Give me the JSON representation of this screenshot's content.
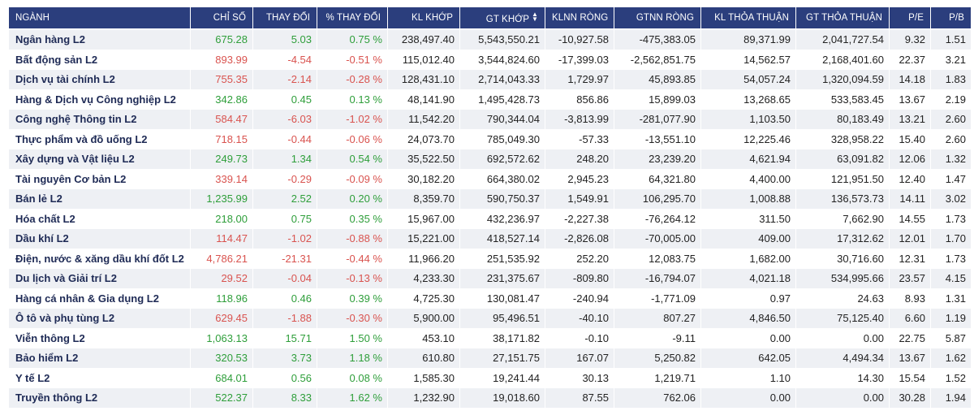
{
  "colors": {
    "header_bg": "#2b3e7d",
    "up": "#2e9e3a",
    "down": "#d9534f",
    "row_alt": "#eef0f4"
  },
  "headers": {
    "sector": "NGÀNH",
    "index": "CHỈ SỐ",
    "change": "THAY ĐỔI",
    "pct_change": "% THAY ĐỔI",
    "volume": "KL KHỚP",
    "value": "GT KHỚP",
    "sort_icon": "sort-icon",
    "foreign_net_vol": "KLNN RÒNG",
    "foreign_net_val": "GTNN RÒNG",
    "deal_vol": "KL THỎA THUẬN",
    "deal_val": "GT THỎA THUẬN",
    "pe": "P/E",
    "pb": "P/B"
  },
  "rows": [
    {
      "sector": "Ngân hàng L2",
      "index": "675.28",
      "change": "5.03",
      "pct": "0.75 %",
      "volume": "238,497.40",
      "value": "5,543,550.21",
      "fnv": "-10,927.58",
      "fnval": "-475,383.05",
      "dvol": "89,371.99",
      "dval": "2,041,727.54",
      "pe": "9.32",
      "pb": "1.51",
      "trend": "up"
    },
    {
      "sector": "Bất động sản L2",
      "index": "893.99",
      "change": "-4.54",
      "pct": "-0.51 %",
      "volume": "115,012.40",
      "value": "3,544,824.60",
      "fnv": "-17,399.03",
      "fnval": "-2,562,851.75",
      "dvol": "14,562.57",
      "dval": "2,168,401.60",
      "pe": "22.37",
      "pb": "3.21",
      "trend": "down"
    },
    {
      "sector": "Dịch vụ tài chính L2",
      "index": "755.35",
      "change": "-2.14",
      "pct": "-0.28 %",
      "volume": "128,431.10",
      "value": "2,714,043.33",
      "fnv": "1,729.97",
      "fnval": "45,893.85",
      "dvol": "54,057.24",
      "dval": "1,320,094.59",
      "pe": "14.18",
      "pb": "1.83",
      "trend": "down"
    },
    {
      "sector": "Hàng & Dịch vụ Công nghiệp L2",
      "index": "342.86",
      "change": "0.45",
      "pct": "0.13 %",
      "volume": "48,141.90",
      "value": "1,495,428.73",
      "fnv": "856.86",
      "fnval": "15,899.03",
      "dvol": "13,268.65",
      "dval": "533,583.45",
      "pe": "13.67",
      "pb": "2.19",
      "trend": "up"
    },
    {
      "sector": "Công nghệ Thông tin L2",
      "index": "584.47",
      "change": "-6.03",
      "pct": "-1.02 %",
      "volume": "11,542.20",
      "value": "790,344.04",
      "fnv": "-3,813.99",
      "fnval": "-281,077.90",
      "dvol": "1,103.50",
      "dval": "80,183.49",
      "pe": "13.21",
      "pb": "2.60",
      "trend": "down"
    },
    {
      "sector": "Thực phẩm và đồ uống L2",
      "index": "718.15",
      "change": "-0.44",
      "pct": "-0.06 %",
      "volume": "24,073.70",
      "value": "785,049.30",
      "fnv": "-57.33",
      "fnval": "-13,551.10",
      "dvol": "12,225.46",
      "dval": "328,958.22",
      "pe": "15.40",
      "pb": "2.60",
      "trend": "down"
    },
    {
      "sector": "Xây dựng và Vật liệu L2",
      "index": "249.73",
      "change": "1.34",
      "pct": "0.54 %",
      "volume": "35,522.50",
      "value": "692,572.62",
      "fnv": "248.20",
      "fnval": "23,239.20",
      "dvol": "4,621.94",
      "dval": "63,091.82",
      "pe": "12.06",
      "pb": "1.32",
      "trend": "up"
    },
    {
      "sector": "Tài nguyên Cơ bản L2",
      "index": "339.14",
      "change": "-0.29",
      "pct": "-0.09 %",
      "volume": "30,182.20",
      "value": "664,380.02",
      "fnv": "2,945.23",
      "fnval": "64,321.80",
      "dvol": "4,400.00",
      "dval": "121,951.50",
      "pe": "12.40",
      "pb": "1.47",
      "trend": "down"
    },
    {
      "sector": "Bán lẻ L2",
      "index": "1,235.99",
      "change": "2.52",
      "pct": "0.20 %",
      "volume": "8,359.70",
      "value": "590,750.37",
      "fnv": "1,549.91",
      "fnval": "106,295.70",
      "dvol": "1,008.88",
      "dval": "136,573.73",
      "pe": "14.11",
      "pb": "3.02",
      "trend": "up"
    },
    {
      "sector": "Hóa chất L2",
      "index": "218.00",
      "change": "0.75",
      "pct": "0.35 %",
      "volume": "15,967.00",
      "value": "432,236.97",
      "fnv": "-2,227.38",
      "fnval": "-76,264.12",
      "dvol": "311.50",
      "dval": "7,662.90",
      "pe": "14.55",
      "pb": "1.73",
      "trend": "up"
    },
    {
      "sector": "Dầu khí L2",
      "index": "114.47",
      "change": "-1.02",
      "pct": "-0.88 %",
      "volume": "15,221.00",
      "value": "418,527.14",
      "fnv": "-2,826.08",
      "fnval": "-70,005.00",
      "dvol": "409.00",
      "dval": "17,312.62",
      "pe": "12.01",
      "pb": "1.70",
      "trend": "down"
    },
    {
      "sector": "Điện, nước & xăng dầu khí đốt L2",
      "index": "4,786.21",
      "change": "-21.31",
      "pct": "-0.44 %",
      "volume": "11,966.20",
      "value": "251,535.92",
      "fnv": "252.20",
      "fnval": "12,083.75",
      "dvol": "1,682.00",
      "dval": "30,716.60",
      "pe": "12.31",
      "pb": "1.73",
      "trend": "down"
    },
    {
      "sector": "Du lịch và Giải trí L2",
      "index": "29.52",
      "change": "-0.04",
      "pct": "-0.13 %",
      "volume": "4,233.30",
      "value": "231,375.67",
      "fnv": "-809.80",
      "fnval": "-16,794.07",
      "dvol": "4,021.18",
      "dval": "534,995.66",
      "pe": "23.57",
      "pb": "4.15",
      "trend": "down"
    },
    {
      "sector": "Hàng cá nhân & Gia dụng L2",
      "index": "118.96",
      "change": "0.46",
      "pct": "0.39 %",
      "volume": "4,725.30",
      "value": "130,081.47",
      "fnv": "-240.94",
      "fnval": "-1,771.09",
      "dvol": "0.97",
      "dval": "24.63",
      "pe": "8.93",
      "pb": "1.31",
      "trend": "up"
    },
    {
      "sector": "Ô tô và phụ tùng L2",
      "index": "629.45",
      "change": "-1.88",
      "pct": "-0.30 %",
      "volume": "5,900.00",
      "value": "95,496.51",
      "fnv": "-40.10",
      "fnval": "807.27",
      "dvol": "4,846.50",
      "dval": "75,125.40",
      "pe": "6.60",
      "pb": "1.19",
      "trend": "down"
    },
    {
      "sector": "Viễn thông L2",
      "index": "1,063.13",
      "change": "15.71",
      "pct": "1.50 %",
      "volume": "453.10",
      "value": "38,171.82",
      "fnv": "-0.10",
      "fnval": "-9.11",
      "dvol": "0.00",
      "dval": "0.00",
      "pe": "22.75",
      "pb": "5.87",
      "trend": "up"
    },
    {
      "sector": "Bảo hiểm L2",
      "index": "320.53",
      "change": "3.73",
      "pct": "1.18 %",
      "volume": "610.80",
      "value": "27,151.75",
      "fnv": "167.07",
      "fnval": "5,250.82",
      "dvol": "642.05",
      "dval": "4,494.34",
      "pe": "13.67",
      "pb": "1.62",
      "trend": "up"
    },
    {
      "sector": "Y tế L2",
      "index": "684.01",
      "change": "0.56",
      "pct": "0.08 %",
      "volume": "1,585.30",
      "value": "19,241.44",
      "fnv": "30.13",
      "fnval": "1,219.71",
      "dvol": "1.10",
      "dval": "14.30",
      "pe": "15.54",
      "pb": "1.52",
      "trend": "up"
    },
    {
      "sector": "Truyền thông L2",
      "index": "522.37",
      "change": "8.33",
      "pct": "1.62 %",
      "volume": "1,232.90",
      "value": "19,018.60",
      "fnv": "87.55",
      "fnval": "762.06",
      "dvol": "0.00",
      "dval": "0.00",
      "pe": "30.28",
      "pb": "1.94",
      "trend": "up"
    }
  ]
}
